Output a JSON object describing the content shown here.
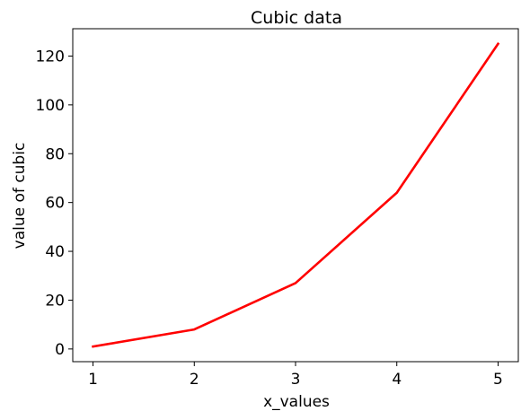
{
  "chart_data": {
    "type": "line",
    "title": "Cubic data",
    "xlabel": "x_values",
    "ylabel": "value of cubic",
    "x": [
      1,
      2,
      3,
      4,
      5
    ],
    "series": [
      {
        "values": [
          1,
          8,
          27,
          64,
          125
        ],
        "color": "#ff0000"
      }
    ],
    "xlim": [
      0.8,
      5.2
    ],
    "ylim": [
      -5.2,
      131.2
    ],
    "x_ticks": [
      1,
      2,
      3,
      4,
      5
    ],
    "x_tick_labels": [
      "1",
      "2",
      "3",
      "4",
      "5"
    ],
    "y_ticks": [
      0,
      20,
      40,
      60,
      80,
      100,
      120
    ],
    "y_tick_labels": [
      "0",
      "20",
      "40",
      "60",
      "80",
      "100",
      "120"
    ],
    "grid": false,
    "legend": "none"
  }
}
